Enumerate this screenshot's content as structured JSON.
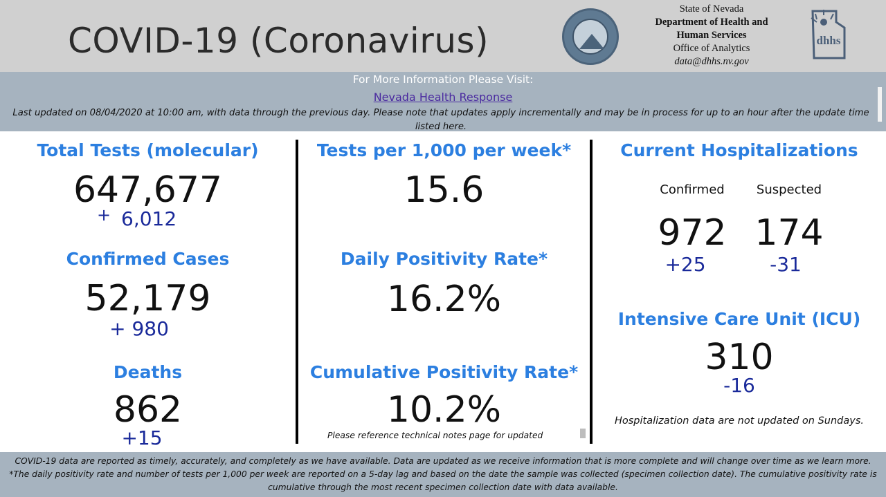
{
  "header": {
    "title": "COVID-19 (Coronavirus)",
    "dept_line1": "State of Nevada",
    "dept_line2": "Department of Health and",
    "dept_line3": "Human Services",
    "dept_line4": "Office of Analytics",
    "dept_email": "data@dhhs.nv.gov",
    "seal_icon": "nevada-state-seal",
    "logo_icon": "dhhs-logo"
  },
  "info": {
    "visit_text": "For More Information Please Visit:",
    "link_text": "Nevada Health Response",
    "updated_text": "Last updated on 08/04/2020 at 10:00 am, with data through the previous day.  Please note that updates apply incrementally and may be in process for up to an hour after the update time listed here."
  },
  "col1": {
    "total_tests_title": "Total Tests (molecular)",
    "total_tests_value": "647,677",
    "total_tests_delta_sign": "+",
    "total_tests_delta": "6,012",
    "confirmed_title": "Confirmed Cases",
    "confirmed_value": "52,179",
    "confirmed_delta": "+ 980",
    "deaths_title": "Deaths",
    "deaths_value": "862",
    "deaths_delta": "+15"
  },
  "col2": {
    "tests_per_title": "Tests per 1,000 per week*",
    "tests_per_value": "15.6",
    "daily_pos_title": "Daily Positivity Rate*",
    "daily_pos_value": "16.2%",
    "cum_pos_title": "Cumulative Positivity Rate*",
    "cum_pos_value": "10.2%",
    "note": "Please reference technical notes page for updated"
  },
  "col3": {
    "hosp_title": "Current Hospitalizations",
    "confirmed_label": "Confirmed",
    "suspected_label": "Suspected",
    "confirmed_value": "972",
    "suspected_value": "174",
    "confirmed_delta": "+25",
    "suspected_delta": "-31",
    "icu_title": "Intensive Care Unit (ICU)",
    "icu_value": "310",
    "icu_delta": "-16",
    "note": "Hospitalization data are not updated on Sundays."
  },
  "footer": {
    "line1": "COVID-19 data are reported as timely, accurately, and completely as we have available.  Data are updated as we receive information that is more complete and will change over time as we learn more.",
    "line2": "*The daily positivity rate and number of tests per 1,000 per week are reported on a 5-day lag and based on the date the sample was collected (specimen collection date).  The cumulative positivity rate is cumulative through the most recent specimen collection date with data available."
  },
  "colors": {
    "title_blue": "#2c7fe0",
    "delta_blue": "#1a2a9a",
    "band_gray": "#a6b3bf",
    "header_gray": "#d0d0d0"
  }
}
